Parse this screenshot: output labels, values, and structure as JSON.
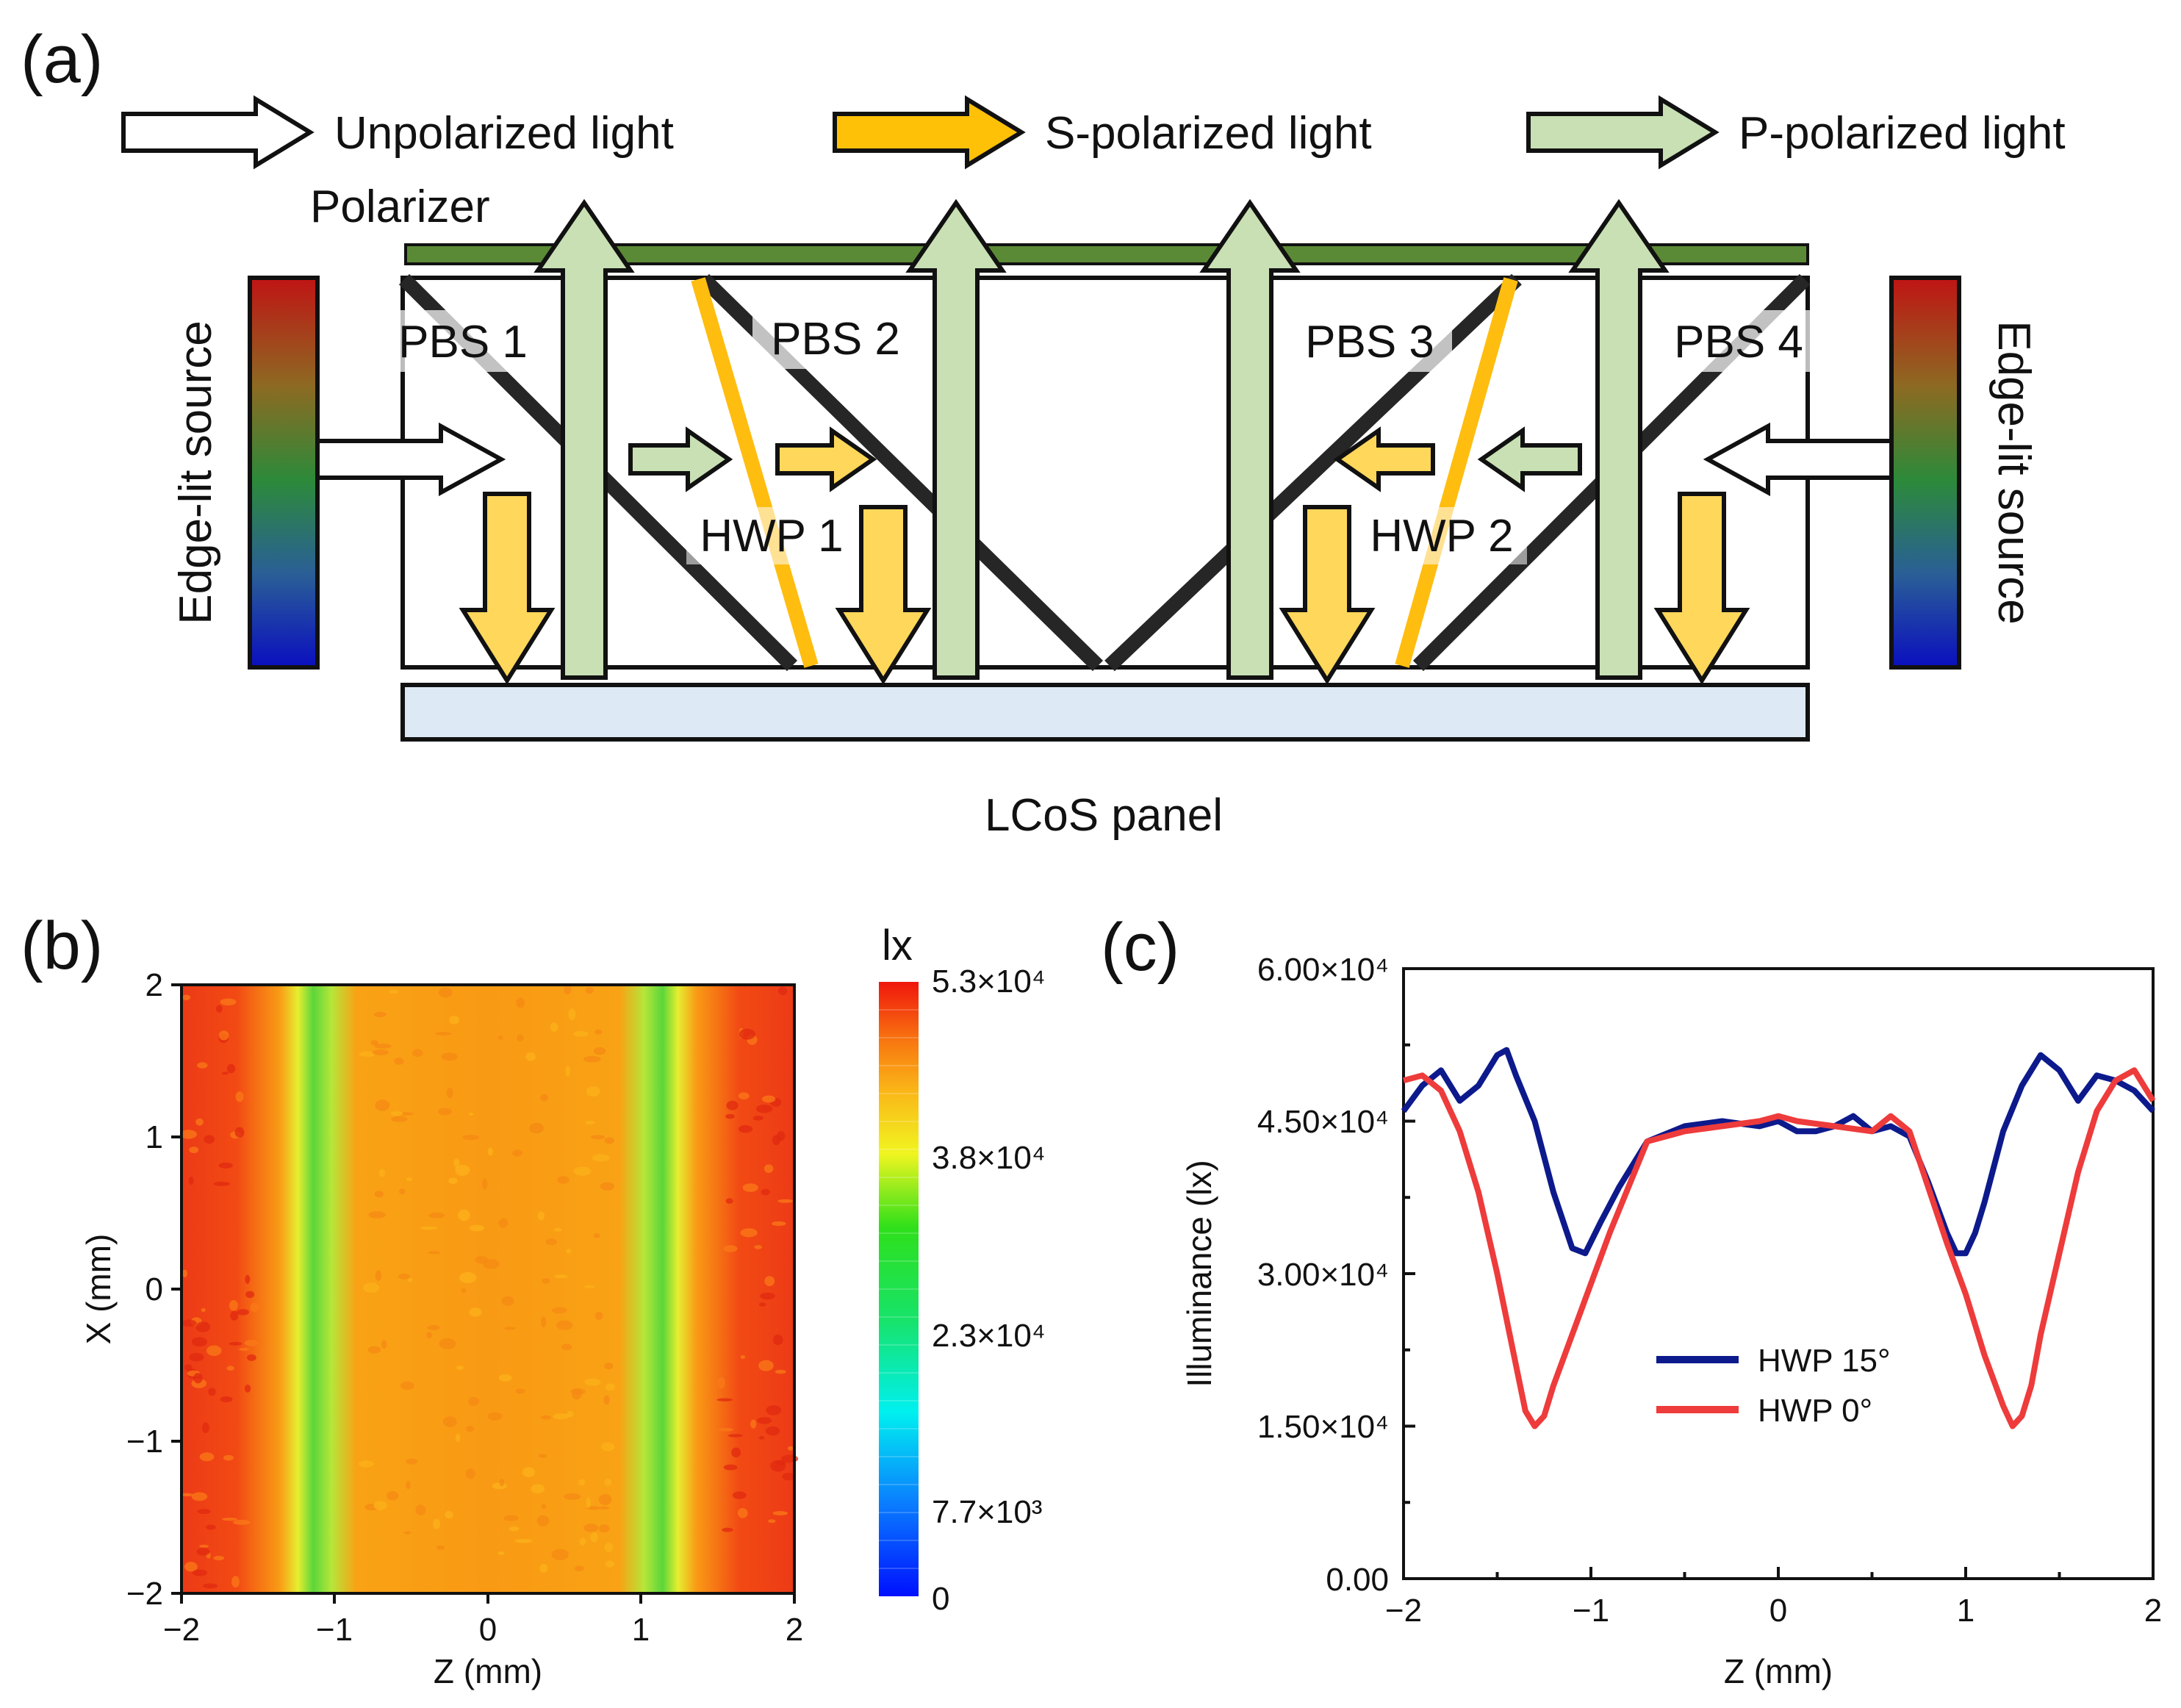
{
  "panel_a": {
    "label": "(a)",
    "legend": {
      "unpolarized": "Unpolarized light",
      "s_polarized": "S-polarized light",
      "p_polarized": "P-polarized light"
    },
    "polarizer": "Polarizer",
    "edge_lit_left": "Edge-lit source",
    "edge_lit_right": "Edge-lit source",
    "pbs": [
      "PBS 1",
      "PBS 2",
      "PBS 3",
      "PBS 4"
    ],
    "hwp1": "HWP 1",
    "hwp2": "HWP 2",
    "lcos": "LCoS panel"
  },
  "panel_b": {
    "label": "(b)",
    "unit": "lx",
    "colorbar_ticks": [
      "5.3×10⁴",
      "3.8×10⁴",
      "2.3×10⁴",
      "7.7×10³",
      "0"
    ],
    "x_ticks": [
      "−2",
      "−1",
      "0",
      "1",
      "2"
    ],
    "y_ticks": [
      "2",
      "1",
      "0",
      "−1",
      "−2"
    ],
    "xlabel": "Z (mm)",
    "ylabel": "X (mm)"
  },
  "panel_c": {
    "label": "(c)",
    "y_ticks": [
      "6.00×10⁴",
      "4.50×10⁴",
      "3.00×10⁴",
      "1.50×10⁴",
      "0.00"
    ],
    "x_ticks": [
      "−2",
      "−1",
      "0",
      "1",
      "2"
    ],
    "legend": [
      "HWP 15°",
      "HWP 0°"
    ]
  },
  "chart_data": [
    {
      "type": "heatmap",
      "title": "",
      "xlabel": "Z (mm)",
      "ylabel": "X (mm)",
      "xlim": [
        -2,
        2
      ],
      "ylim": [
        -2,
        2
      ],
      "colorbar_label": "lx",
      "colorbar_range": [
        0,
        53000
      ],
      "description_profile_z": [
        -2,
        -1.6,
        -1.3,
        -1.1,
        -0.9,
        -0.7,
        -0.4,
        0,
        0.4,
        0.7,
        0.9,
        1.1,
        1.3,
        1.6,
        2
      ],
      "description_profile_lx": [
        51000,
        50000,
        46000,
        34000,
        36000,
        44000,
        45000,
        45000,
        45000,
        44000,
        36000,
        34000,
        46000,
        50000,
        51000
      ]
    },
    {
      "type": "line",
      "title": "",
      "xlabel": "Z (mm)",
      "ylabel": "Illuminance (lx)",
      "xlim": [
        -2,
        2
      ],
      "ylim": [
        0,
        60000
      ],
      "series": [
        {
          "name": "HWP 15°",
          "color": "#0d1a8c",
          "x": [
            -2,
            -1.9,
            -1.8,
            -1.7,
            -1.6,
            -1.5,
            -1.45,
            -1.4,
            -1.3,
            -1.2,
            -1.1,
            -1.03,
            -0.95,
            -0.85,
            -0.7,
            -0.5,
            -0.3,
            -0.1,
            0,
            0.1,
            0.2,
            0.3,
            0.4,
            0.5,
            0.6,
            0.7,
            0.8,
            0.9,
            0.95,
            1.0,
            1.05,
            1.1,
            1.2,
            1.3,
            1.4,
            1.5,
            1.6,
            1.7,
            1.8,
            1.9,
            2
          ],
          "y": [
            46000,
            48500,
            50000,
            47000,
            48500,
            51500,
            52000,
            49500,
            45000,
            38000,
            32500,
            32000,
            35000,
            38500,
            43000,
            44500,
            45000,
            44500,
            45000,
            44000,
            44000,
            44500,
            45500,
            44000,
            44500,
            43500,
            39000,
            34000,
            32000,
            32000,
            34000,
            37000,
            44000,
            48500,
            51500,
            50000,
            47000,
            49500,
            49000,
            48000,
            46000
          ]
        },
        {
          "name": "HWP 0°",
          "color": "#ee3b3b",
          "x": [
            -2,
            -1.9,
            -1.8,
            -1.7,
            -1.6,
            -1.5,
            -1.4,
            -1.35,
            -1.3,
            -1.25,
            -1.2,
            -1.1,
            -1.0,
            -0.9,
            -0.8,
            -0.7,
            -0.5,
            -0.3,
            -0.1,
            0,
            0.1,
            0.3,
            0.5,
            0.6,
            0.7,
            0.8,
            0.9,
            1.0,
            1.1,
            1.2,
            1.25,
            1.3,
            1.35,
            1.4,
            1.5,
            1.6,
            1.7,
            1.8,
            1.9,
            2
          ],
          "y": [
            49000,
            49500,
            48000,
            44000,
            38000,
            30000,
            21000,
            16500,
            15000,
            16000,
            19000,
            24000,
            29000,
            34000,
            38500,
            43000,
            44000,
            44500,
            45000,
            45500,
            45000,
            44500,
            44000,
            45500,
            44000,
            38500,
            33000,
            28000,
            22000,
            17000,
            15000,
            16000,
            19000,
            24000,
            32000,
            40000,
            46000,
            49000,
            50000,
            47000
          ]
        }
      ]
    }
  ]
}
